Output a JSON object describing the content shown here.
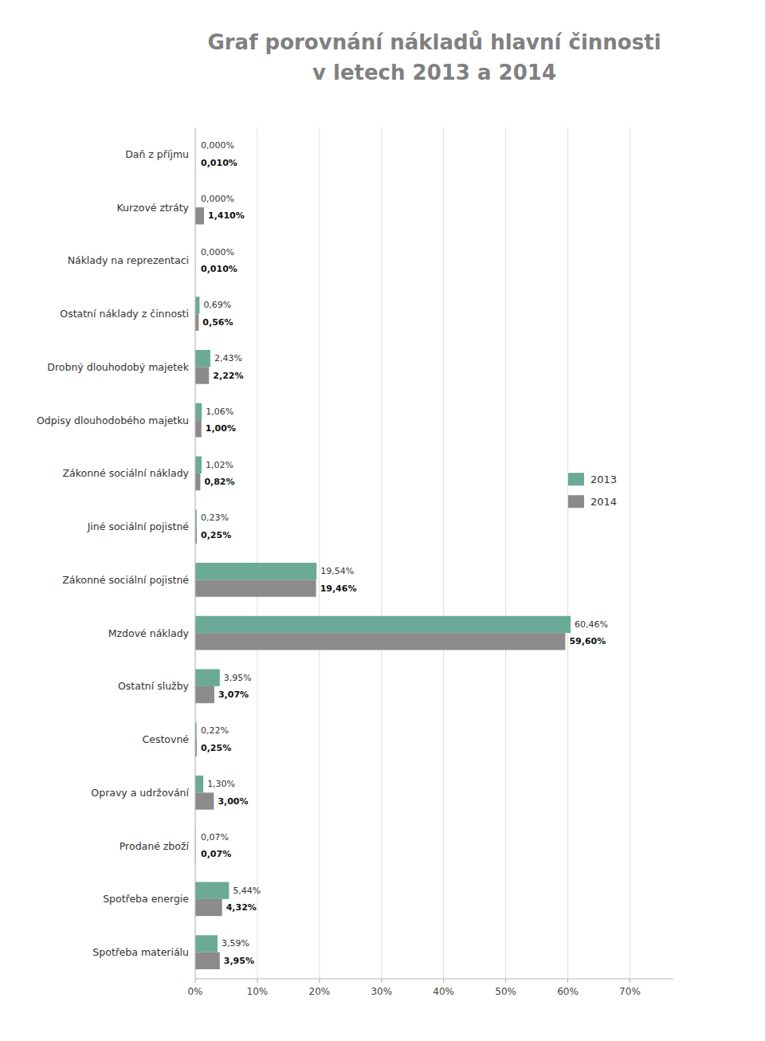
{
  "chart_data": {
    "type": "bar",
    "orientation": "horizontal",
    "title": "Graf porovnání nákladů hlavní činnosti\nv letech 2013 a 2014",
    "title_color": "#808080",
    "background_color": "#ffffff",
    "categories": [
      "Daň z příjmu",
      "Kurzové ztráty",
      "Náklady na reprezentaci",
      "Ostatní náklady z činnosti",
      "Drobný dlouhodobý majetek",
      "Odpisy dlouhodobého majetku",
      "Zákonné sociální náklady",
      "Jiné sociální pojistné",
      "Zákonné sociální pojistné",
      "Mzdové náklady",
      "Ostatní služby",
      "Cestovné",
      "Opravy a udržování",
      "Prodané zboží",
      "Spotřeba energie",
      "Spotřeba materiálu"
    ],
    "series": [
      {
        "name": "2013",
        "color": "#6aaa96",
        "values": [
          0.0001,
          0.0001,
          0.0001,
          0.69,
          2.43,
          1.06,
          1.02,
          0.23,
          19.54,
          60.46,
          3.95,
          0.22,
          1.3,
          0.07,
          5.44,
          3.59
        ],
        "value_labels": [
          "0,000%",
          "0,000%",
          "0,000%",
          "0,69%",
          "2,43%",
          "1,06%",
          "1,02%",
          "0,23%",
          "19,54%",
          "60,46%",
          "3,95%",
          "0,22%",
          "1,30%",
          "0,07%",
          "5,44%",
          "3,59%"
        ]
      },
      {
        "name": "2014",
        "color": "#8b8b8b",
        "values": [
          0.01,
          1.41,
          0.01,
          0.56,
          2.22,
          1.0,
          0.82,
          0.25,
          19.46,
          59.6,
          3.07,
          0.25,
          3.0,
          0.07,
          4.32,
          3.95
        ],
        "value_labels": [
          "0,010%",
          "1,410%",
          "0,010%",
          "0,56%",
          "2,22%",
          "1,00%",
          "0,82%",
          "0,25%",
          "19,46%",
          "59,60%",
          "3,07%",
          "0,25%",
          "3,00%",
          "0,07%",
          "4,32%",
          "3,95%"
        ]
      }
    ],
    "xlim": [
      0,
      77
    ],
    "xticks": [
      {
        "value": 0,
        "label": "0%"
      },
      {
        "value": 10,
        "label": "10%"
      },
      {
        "value": 20,
        "label": "20%"
      },
      {
        "value": 30,
        "label": "30%"
      },
      {
        "value": 40,
        "label": "40%"
      },
      {
        "value": 50,
        "label": "50%"
      },
      {
        "value": 60,
        "label": "60%"
      },
      {
        "value": 70,
        "label": "70%"
      }
    ],
    "grid": true,
    "legend": "right",
    "data_labels": true
  }
}
